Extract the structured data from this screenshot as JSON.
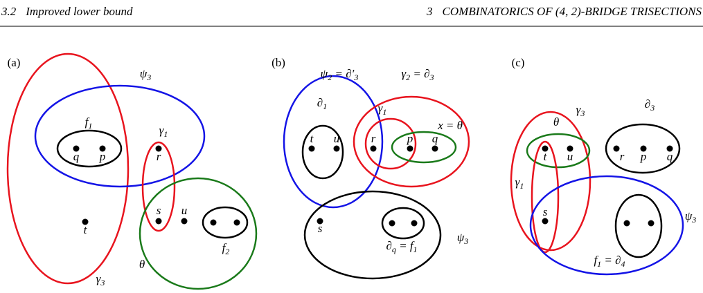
{
  "header": {
    "section": "3.2",
    "title": "Improved lower bound",
    "chapter": "3",
    "chapter_title": "COMBINATORICS OF (4, 2)-BRIDGE TRISECTIONS"
  },
  "panels": [
    {
      "label": "(a)",
      "labels": [
        [
          "ψ",
          "3"
        ],
        [
          "f",
          "1"
        ],
        [
          "γ",
          "1"
        ],
        [
          "q"
        ],
        [
          "p"
        ],
        [
          "r"
        ],
        [
          "t"
        ],
        [
          "s"
        ],
        [
          "u"
        ],
        [
          "f",
          "2"
        ],
        [
          "θ"
        ],
        [
          "γ",
          "3"
        ]
      ]
    },
    {
      "label": "(b)",
      "labels": [
        [
          "ψ",
          "2",
          " = ∂′",
          "3"
        ],
        [
          "γ",
          "2",
          " = ∂",
          "3"
        ],
        [
          "∂",
          "1"
        ],
        [
          "γ",
          "1"
        ],
        [
          "x = θ"
        ],
        [
          "t"
        ],
        [
          "u"
        ],
        [
          "r"
        ],
        [
          "p"
        ],
        [
          "q"
        ],
        [
          "s"
        ],
        [
          "∂",
          "q",
          " = f",
          "1"
        ],
        [
          "ψ",
          "3"
        ]
      ]
    },
    {
      "label": "(c)",
      "labels": [
        [
          "γ",
          "3"
        ],
        [
          "θ"
        ],
        [
          "∂",
          "3"
        ],
        [
          "t"
        ],
        [
          "u"
        ],
        [
          "r"
        ],
        [
          "p"
        ],
        [
          "q"
        ],
        [
          "γ",
          "1"
        ],
        [
          "s"
        ],
        [
          "ψ",
          "3"
        ],
        [
          "f",
          "1",
          " = ∂",
          "4"
        ]
      ]
    }
  ]
}
